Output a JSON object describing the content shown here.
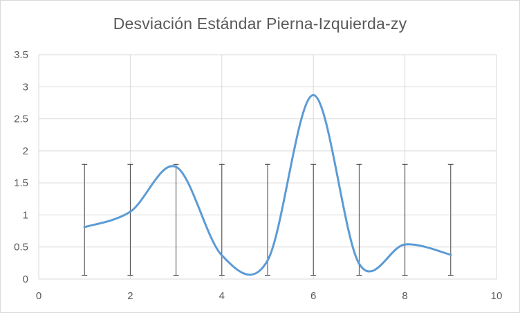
{
  "chart_data": {
    "type": "line",
    "title": "Desviación Estándar  Pierna-Izquierda-zy",
    "xlabel": "",
    "ylabel": "",
    "xlim": [
      0,
      10
    ],
    "ylim": [
      0,
      3.5
    ],
    "x_ticks": [
      "0",
      "2",
      "4",
      "6",
      "8",
      "10"
    ],
    "y_ticks": [
      "0",
      "0.5",
      "1",
      "1.5",
      "2",
      "2.5",
      "3",
      "3.5"
    ],
    "grid": true,
    "smooth": true,
    "series": [
      {
        "x": [
          1,
          2,
          3,
          4,
          5,
          6,
          7,
          8,
          9
        ],
        "values": [
          0.81,
          1.05,
          1.75,
          0.37,
          0.29,
          2.87,
          0.24,
          0.54,
          0.38
        ],
        "error_bars": {
          "lower": 0.06,
          "upper": 1.79
        },
        "color": "#5b9bd5"
      }
    ],
    "gridline_color": "#d9d9d9",
    "errorbar_color": "#404040"
  }
}
